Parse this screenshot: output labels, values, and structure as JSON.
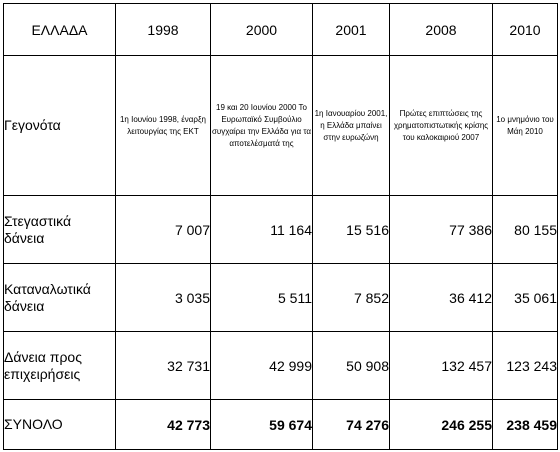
{
  "table": {
    "corner": "ΕΛΛΑΔΑ",
    "years": [
      "1998",
      "2000",
      "2001",
      "2008",
      "2010"
    ],
    "events_label": "Γεγονότα",
    "events": [
      "1η Ιουνίου 1998, έναρξη λειτουργίας της ΕΚΤ",
      "19 και 20 Ιουνίου 2000 Το Ευρωπαϊκό Συμβούλιο συγχαίρει την Ελλάδα για τα αποτελέσματά της",
      "1η Ιανουαρίου 2001, η Ελλάδα μπαίνει στην ευρωζώνη",
      "Πρώτες επιπτώσεις της χρηματοπιστωτικής κρίσης του καλοκαιριού 2007",
      "1ο μνημόνιο του Μάη 2010"
    ],
    "rows": [
      {
        "label": "Στεγαστικά δάνεια",
        "values": [
          "7 007",
          "11 164",
          "15 516",
          "77 386",
          "80 155"
        ]
      },
      {
        "label": "Καταναλωτικά δάνεια",
        "values": [
          "3 035",
          "5 511",
          "7 852",
          "36 412",
          "35 061"
        ]
      },
      {
        "label": "Δάνεια προς επιχειρήσεις",
        "values": [
          "32 731",
          "42 999",
          "50 908",
          "132 457",
          "123 243"
        ]
      }
    ],
    "total": {
      "label": "ΣΥΝΟΛΟ",
      "values": [
        "42 773",
        "59 674",
        "74 276",
        "246 255",
        "238 459"
      ]
    }
  }
}
